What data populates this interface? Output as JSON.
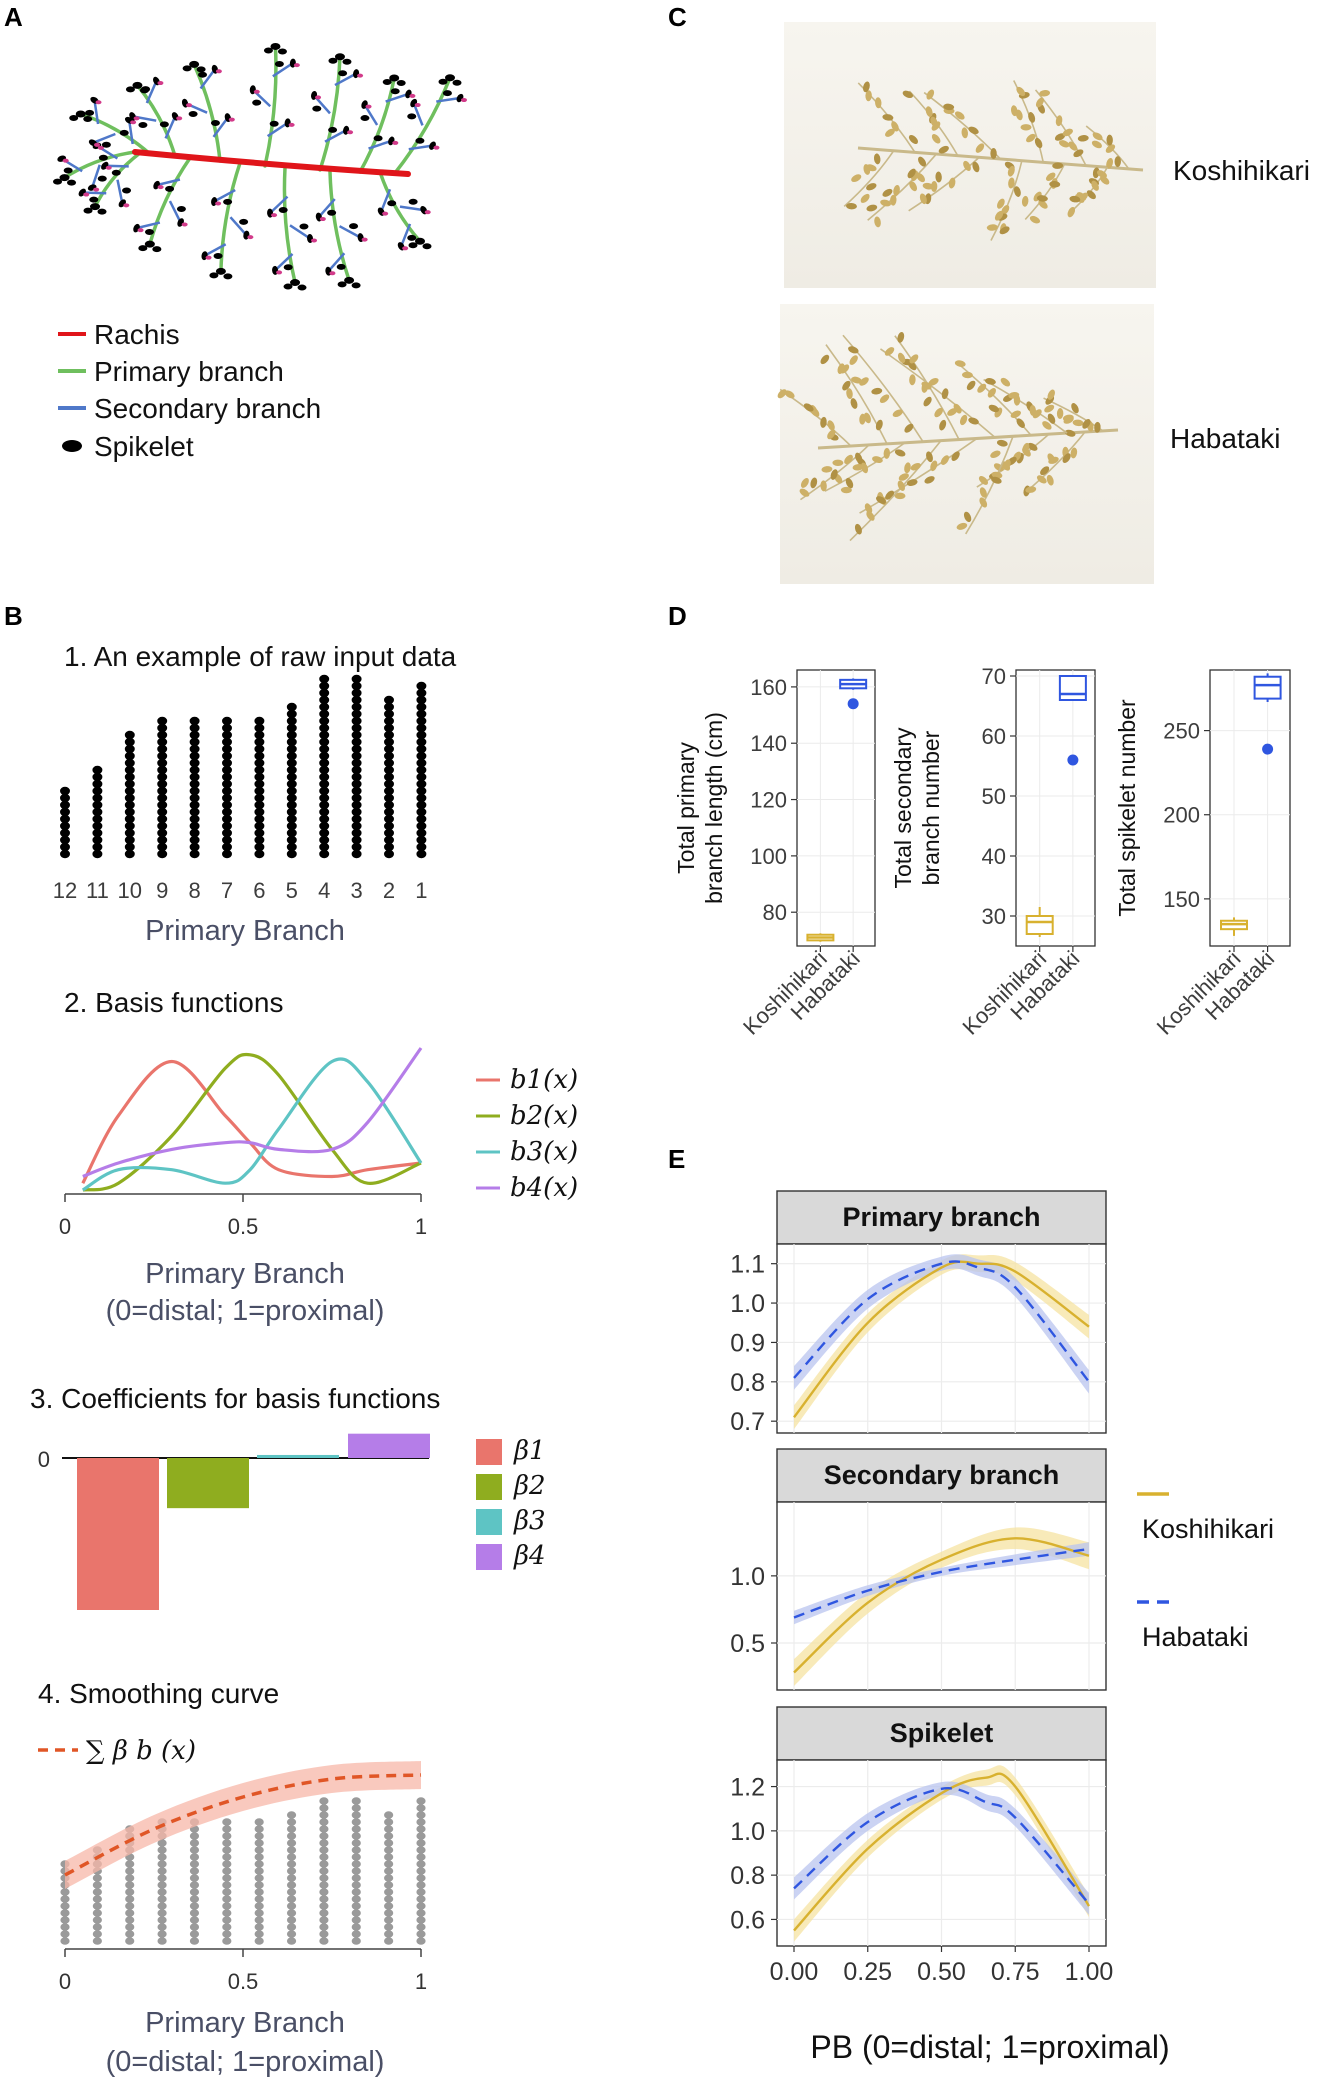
{
  "panels": {
    "a": "A",
    "b": "B",
    "c": "C",
    "d": "D",
    "e": "E"
  },
  "panel_a": {
    "legend": [
      {
        "label": "Rachis",
        "color": "#e0151a",
        "kind": "line"
      },
      {
        "label": "Primary branch",
        "color": "#6fbf5e",
        "kind": "line"
      },
      {
        "label": "Secondary branch",
        "color": "#4f78c9",
        "kind": "line"
      },
      {
        "label": "Spikelet",
        "color": "#000000",
        "kind": "dot"
      }
    ]
  },
  "panel_b": {
    "step1": {
      "heading": "1. An example of raw input data",
      "xlabel": "Primary Branch"
    },
    "step2": {
      "heading": "2. Basis functions",
      "xlabel": "Primary Branch",
      "xsub": "(0=distal; 1=proximal)"
    },
    "step3": {
      "heading": "3. Coefficients for basis functions",
      "zero_label": "0"
    },
    "step4": {
      "heading": "4. Smoothing curve",
      "xlabel": "Primary Branch",
      "xsub": "(0=distal; 1=proximal)",
      "legend": "∑ β b (x)"
    }
  },
  "panel_c": {
    "labels": [
      "Koshihikari",
      "Habataki"
    ]
  },
  "panel_e": {
    "x_title": "PB (0=distal; 1=proximal)",
    "legend": [
      "Koshihikari",
      "Habataki"
    ]
  },
  "colors": {
    "koshihikari": "#d8b12f",
    "habataki": "#2f56e0",
    "k_band": "#f5e3a1",
    "h_band": "#b9c4ef",
    "b1": "#e9756c",
    "b2": "#8fad1f",
    "b3": "#5ec4c4",
    "b4": "#b57de8",
    "smooth": "#e05626",
    "smooth_band": "#f7b7a8"
  },
  "chart_data": [
    {
      "id": "B1",
      "type": "bar",
      "title": "1. An example of raw input data",
      "xlabel": "Primary Branch",
      "categories": [
        "12",
        "11",
        "10",
        "9",
        "8",
        "7",
        "6",
        "5",
        "4",
        "3",
        "2",
        "1"
      ],
      "values": [
        10,
        13,
        18,
        20,
        20,
        20,
        20,
        22,
        26,
        26,
        23,
        25
      ],
      "note": "dot counts per primary branch (spikelets)"
    },
    {
      "id": "B2",
      "type": "line",
      "title": "2. Basis functions",
      "xlabel": "Primary Branch",
      "x_sub": "(0=distal; 1=proximal)",
      "x": [
        0.05,
        0.15,
        0.3,
        0.45,
        0.52,
        0.6,
        0.75,
        0.85,
        1.0
      ],
      "xticks": [
        "0",
        "0.5",
        "1"
      ],
      "xlim": [
        0,
        1
      ],
      "series": [
        {
          "name": "b1(x)",
          "values": [
            0.05,
            0.55,
            0.95,
            0.55,
            0.35,
            0.15,
            0.1,
            0.15,
            0.2
          ]
        },
        {
          "name": "b2(x)",
          "values": [
            0.0,
            0.05,
            0.4,
            0.9,
            1.0,
            0.85,
            0.3,
            0.05,
            0.2
          ]
        },
        {
          "name": "b3(x)",
          "values": [
            0.0,
            0.15,
            0.15,
            0.05,
            0.15,
            0.45,
            0.95,
            0.8,
            0.2
          ]
        },
        {
          "name": "b4(x)",
          "values": [
            0.1,
            0.2,
            0.3,
            0.35,
            0.35,
            0.3,
            0.3,
            0.5,
            1.05
          ]
        }
      ],
      "legend": [
        "b1(x)",
        "b2(x)",
        "b3(x)",
        "b4(x)"
      ]
    },
    {
      "id": "B3",
      "type": "bar",
      "title": "3. Coefficients for basis functions",
      "categories": [
        "β1",
        "β2",
        "β3",
        "β4"
      ],
      "values": [
        -1.0,
        -0.33,
        0.02,
        0.16
      ],
      "zero_label": "0"
    },
    {
      "id": "B4",
      "type": "line",
      "title": "4. Smoothing curve",
      "xlabel": "Primary Branch",
      "x_sub": "(0=distal; 1=proximal)",
      "x": [
        0,
        0.25,
        0.5,
        0.75,
        1.0
      ],
      "xticks": [
        "0",
        "0.5",
        "1"
      ],
      "xlim": [
        0,
        1
      ],
      "series": [
        {
          "name": "∑ β b (x)",
          "values": [
            0.35,
            0.58,
            0.74,
            0.83,
            0.85
          ]
        }
      ],
      "band_halfwidth": 0.07
    },
    {
      "id": "D1",
      "type": "box",
      "ylabel": "Total primary branch length (cm)",
      "categories": [
        "Koshihikari",
        "Habataki"
      ],
      "yticks": [
        80,
        100,
        120,
        140,
        160
      ],
      "ylim": [
        68,
        166
      ],
      "boxes": [
        {
          "group": "Koshihikari",
          "min": 69.5,
          "q1": 70,
          "median": 71,
          "q3": 72,
          "max": 72.5,
          "outliers": []
        },
        {
          "group": "Habataki",
          "min": 159,
          "q1": 159.5,
          "median": 161,
          "q3": 162.5,
          "max": 163,
          "outliers": [
            154
          ]
        }
      ]
    },
    {
      "id": "D2",
      "type": "box",
      "ylabel": "Total secondary branch number",
      "categories": [
        "Koshihikari",
        "Habataki"
      ],
      "yticks": [
        30,
        40,
        50,
        60,
        70
      ],
      "ylim": [
        25,
        71
      ],
      "boxes": [
        {
          "group": "Koshihikari",
          "min": 26.5,
          "q1": 27,
          "median": 29,
          "q3": 30,
          "max": 31.5,
          "outliers": []
        },
        {
          "group": "Habataki",
          "min": 66,
          "q1": 66,
          "median": 67,
          "q3": 70,
          "max": 70,
          "outliers": [
            56
          ]
        }
      ]
    },
    {
      "id": "D3",
      "type": "box",
      "ylabel": "Total spikelet number",
      "categories": [
        "Koshihikari",
        "Habataki"
      ],
      "yticks": [
        150,
        200,
        250
      ],
      "ylim": [
        122,
        286
      ],
      "boxes": [
        {
          "group": "Koshihikari",
          "min": 128,
          "q1": 132,
          "median": 135,
          "q3": 137,
          "max": 139,
          "outliers": []
        },
        {
          "group": "Habataki",
          "min": 267,
          "q1": 269,
          "median": 277,
          "q3": 282,
          "max": 284,
          "outliers": [
            239
          ]
        }
      ]
    },
    {
      "id": "E1",
      "type": "line",
      "title": "Primary branch",
      "xlabel": "PB (0=distal; 1=proximal)",
      "x": [
        0,
        0.25,
        0.5,
        0.625,
        0.75,
        1.0
      ],
      "xticks": [
        "0.00",
        "0.25",
        "0.50",
        "0.75",
        "1.00"
      ],
      "yticks": [
        "0.7",
        "0.8",
        "0.9",
        "1.0",
        "1.1"
      ],
      "ylim": [
        0.67,
        1.15
      ],
      "series": [
        {
          "name": "Koshihikari",
          "values": [
            0.71,
            0.95,
            1.09,
            1.1,
            1.08,
            0.94
          ],
          "band": 0.03
        },
        {
          "name": "Habataki",
          "values": [
            0.81,
            1.01,
            1.1,
            1.09,
            1.04,
            0.8
          ],
          "band": 0.03
        }
      ]
    },
    {
      "id": "E2",
      "type": "line",
      "title": "Secondary branch",
      "xlabel": "PB (0=distal; 1=proximal)",
      "x": [
        0,
        0.25,
        0.5,
        0.75,
        1.0
      ],
      "xticks": [
        "0.00",
        "0.25",
        "0.50",
        "0.75",
        "1.00"
      ],
      "yticks": [
        "0.5",
        "1.0"
      ],
      "ylim": [
        0.15,
        1.55
      ],
      "series": [
        {
          "name": "Koshihikari",
          "values": [
            0.28,
            0.8,
            1.12,
            1.28,
            1.15
          ],
          "band": 0.1
        },
        {
          "name": "Habataki",
          "values": [
            0.69,
            0.89,
            1.03,
            1.12,
            1.2
          ],
          "band": 0.05
        }
      ]
    },
    {
      "id": "E3",
      "type": "line",
      "title": "Spikelet",
      "xlabel": "PB (0=distal; 1=proximal)",
      "x": [
        0,
        0.25,
        0.5,
        0.65,
        0.75,
        1.0
      ],
      "xticks": [
        "0.00",
        "0.25",
        "0.50",
        "0.75",
        "1.00"
      ],
      "yticks": [
        "0.6",
        "0.8",
        "1.0",
        "1.2"
      ],
      "ylim": [
        0.48,
        1.32
      ],
      "series": [
        {
          "name": "Koshihikari",
          "values": [
            0.55,
            0.92,
            1.17,
            1.24,
            1.2,
            0.66
          ],
          "band": 0.05
        },
        {
          "name": "Habataki",
          "values": [
            0.74,
            1.04,
            1.19,
            1.13,
            1.06,
            0.67
          ],
          "band": 0.05
        }
      ]
    }
  ]
}
